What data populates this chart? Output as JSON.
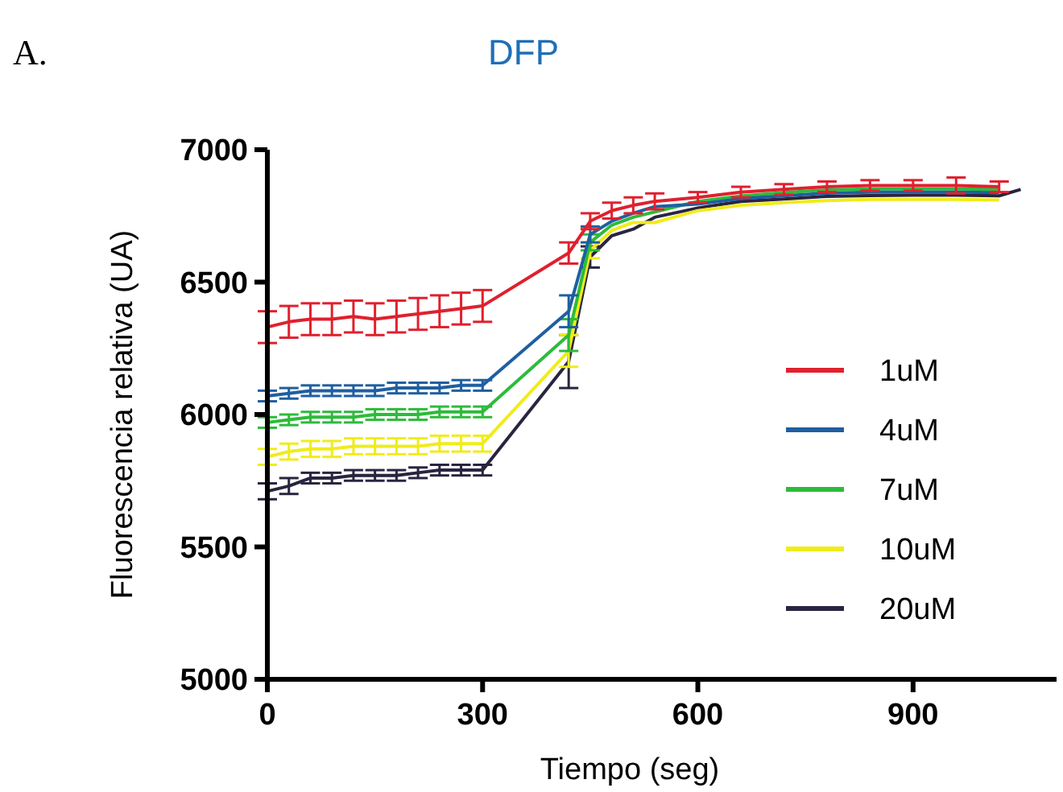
{
  "chart_data": {
    "type": "line",
    "title": "DFP",
    "xlabel": "Tiempo (seg)",
    "ylabel": "Fluorescencia relativa (UA)",
    "annotations": [
      "A."
    ],
    "x": [
      0,
      30,
      60,
      90,
      120,
      150,
      180,
      210,
      240,
      270,
      300,
      420,
      450,
      480,
      510,
      540,
      600,
      660,
      720,
      780,
      840,
      900,
      960,
      1020,
      1050
    ],
    "series": [
      {
        "name": "1uM",
        "color": "#e0202e",
        "values": [
          6330,
          6350,
          6360,
          6360,
          6370,
          6360,
          6370,
          6380,
          6390,
          6400,
          6410,
          6610,
          6730,
          6770,
          6790,
          6805,
          6820,
          6840,
          6850,
          6860,
          6865,
          6865,
          6865,
          6860,
          null
        ],
        "errors": [
          60,
          60,
          60,
          60,
          60,
          60,
          60,
          60,
          60,
          60,
          60,
          40,
          30,
          30,
          30,
          30,
          20,
          20,
          20,
          20,
          20,
          20,
          30,
          20,
          null
        ]
      },
      {
        "name": "4uM",
        "color": "#1f5fa0",
        "values": [
          6070,
          6080,
          6090,
          6090,
          6090,
          6090,
          6100,
          6100,
          6100,
          6110,
          6110,
          6390,
          6680,
          6730,
          6760,
          6785,
          6795,
          6815,
          6826,
          6836,
          6840,
          6840,
          6840,
          6838,
          null
        ],
        "errors": [
          20,
          20,
          20,
          20,
          20,
          20,
          20,
          20,
          20,
          20,
          20,
          60,
          30,
          null,
          null,
          null,
          null,
          null,
          null,
          null,
          null,
          null,
          null,
          null,
          null
        ]
      },
      {
        "name": "7uM",
        "color": "#2dbb3a",
        "values": [
          5970,
          5980,
          5990,
          5990,
          5990,
          6000,
          6000,
          6000,
          6010,
          6010,
          6010,
          6300,
          6650,
          6715,
          6745,
          6765,
          6805,
          6825,
          6838,
          6848,
          6852,
          6852,
          6852,
          6850,
          null
        ],
        "errors": [
          20,
          20,
          20,
          20,
          20,
          20,
          20,
          20,
          20,
          20,
          20,
          60,
          30,
          null,
          null,
          null,
          null,
          null,
          null,
          null,
          null,
          null,
          null,
          null,
          null
        ]
      },
      {
        "name": "10uM",
        "color": "#f0ec1a",
        "values": [
          5840,
          5860,
          5870,
          5870,
          5880,
          5880,
          5880,
          5880,
          5890,
          5890,
          5890,
          6240,
          6620,
          6695,
          6725,
          6725,
          6770,
          6790,
          6800,
          6808,
          6812,
          6812,
          6812,
          6810,
          null
        ],
        "errors": [
          30,
          30,
          30,
          30,
          30,
          30,
          30,
          30,
          30,
          30,
          30,
          60,
          30,
          null,
          null,
          null,
          null,
          null,
          null,
          null,
          null,
          null,
          null,
          null,
          null
        ]
      },
      {
        "name": "20uM",
        "color": "#2a2440",
        "values": [
          5710,
          5730,
          5760,
          5760,
          5770,
          5770,
          5770,
          5780,
          5790,
          5790,
          5790,
          6200,
          6595,
          6675,
          6700,
          6745,
          6780,
          6805,
          6814,
          6824,
          6827,
          6828,
          6828,
          6826,
          6850
        ],
        "errors": [
          30,
          30,
          20,
          20,
          20,
          20,
          20,
          20,
          20,
          20,
          20,
          100,
          40,
          null,
          null,
          null,
          null,
          null,
          null,
          null,
          null,
          null,
          null,
          null,
          null
        ]
      }
    ],
    "xlim": [
      0,
      1100
    ],
    "xticks": [
      0,
      300,
      600,
      900
    ],
    "ylim": [
      5000,
      7000
    ],
    "yticks": [
      5000,
      5500,
      6000,
      6500,
      7000
    ],
    "grid": false,
    "legend": "right",
    "marker": "none",
    "line_style": "solid"
  }
}
